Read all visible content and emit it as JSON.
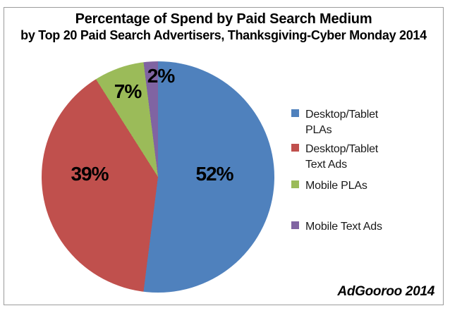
{
  "chart": {
    "title_line1": "Percentage of Spend by Paid Search Medium",
    "title_line2": "by Top 20 Paid Search Advertisers, Thanksgiving-Cyber Monday 2014",
    "source": "AdGooroo 2014"
  },
  "chart_data": {
    "type": "pie",
    "title": "Percentage of Spend by Paid Search Medium",
    "subtitle": "by Top 20 Paid Search Advertisers, Thanksgiving-Cyber Monday 2014",
    "labels": [
      "Desktop/Tablet PLAs",
      "Desktop/Tablet Text Ads",
      "Mobile PLAs",
      "Mobile Text Ads"
    ],
    "values": [
      52,
      39,
      7,
      2
    ],
    "data_labels": [
      "52%",
      "39%",
      "7%",
      "2%"
    ],
    "colors": [
      "#4F81BD",
      "#C0504D",
      "#9BBB59",
      "#8064A2"
    ],
    "start_angle_deg": 0,
    "direction": "clockwise",
    "legend_position": "right",
    "annotation": "AdGooroo 2014"
  },
  "legend": {
    "items": [
      {
        "label": "Desktop/Tablet PLAs"
      },
      {
        "label": "Desktop/Tablet Text Ads"
      },
      {
        "label": "Mobile PLAs"
      },
      {
        "label": "Mobile Text Ads"
      }
    ]
  }
}
